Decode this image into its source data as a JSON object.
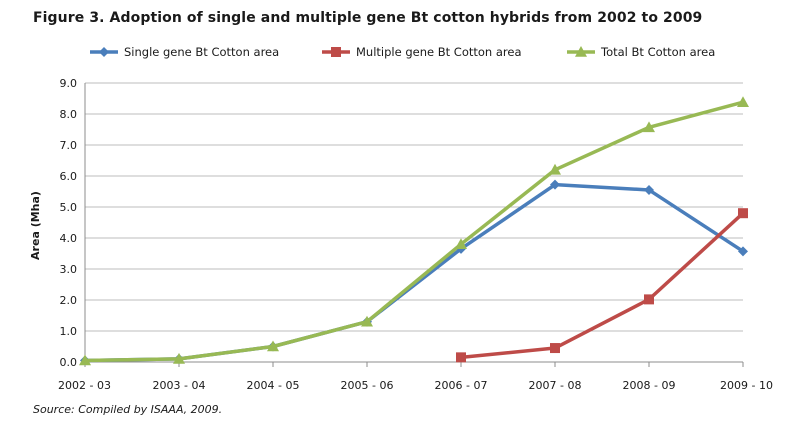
{
  "figure_title": "Figure 3.  Adoption of single and multiple gene Bt cotton hybrids from 2002 to 2009",
  "source_note": "Source:  Compiled by ISAAA, 2009.",
  "chart_data": {
    "type": "line",
    "title": "Adoption of single and multiple gene Bt cotton hybrids from 2002 to 2009",
    "xlabel": "",
    "ylabel": "Area (Mha)",
    "ylim": [
      0,
      9
    ],
    "y_ticks": [
      "0.0",
      "1.0",
      "2.0",
      "3.0",
      "4.0",
      "5.0",
      "6.0",
      "7.0",
      "8.0",
      "9.0"
    ],
    "grid": true,
    "legend_position": "top",
    "categories": [
      "2002 - 03",
      "2003 - 04",
      "2004 - 05",
      "2005 - 06",
      "2006 - 07",
      "2007 - 08",
      "2008 - 09",
      "2009 - 10"
    ],
    "series": [
      {
        "name": "Single gene Bt Cotton  area",
        "color": "#4a7ebb",
        "marker": "diamond",
        "values": [
          0.05,
          0.1,
          0.5,
          1.3,
          3.65,
          5.72,
          5.55,
          3.57
        ]
      },
      {
        "name": "Multiple gene Bt Cotton area",
        "color": "#be4b48",
        "marker": "square",
        "values": [
          null,
          null,
          null,
          null,
          0.15,
          0.45,
          2.02,
          4.8
        ]
      },
      {
        "name": "Total Bt Cotton area",
        "color": "#98b954",
        "marker": "triangle",
        "values": [
          0.05,
          0.1,
          0.5,
          1.3,
          3.8,
          6.2,
          7.57,
          8.38
        ]
      }
    ]
  }
}
